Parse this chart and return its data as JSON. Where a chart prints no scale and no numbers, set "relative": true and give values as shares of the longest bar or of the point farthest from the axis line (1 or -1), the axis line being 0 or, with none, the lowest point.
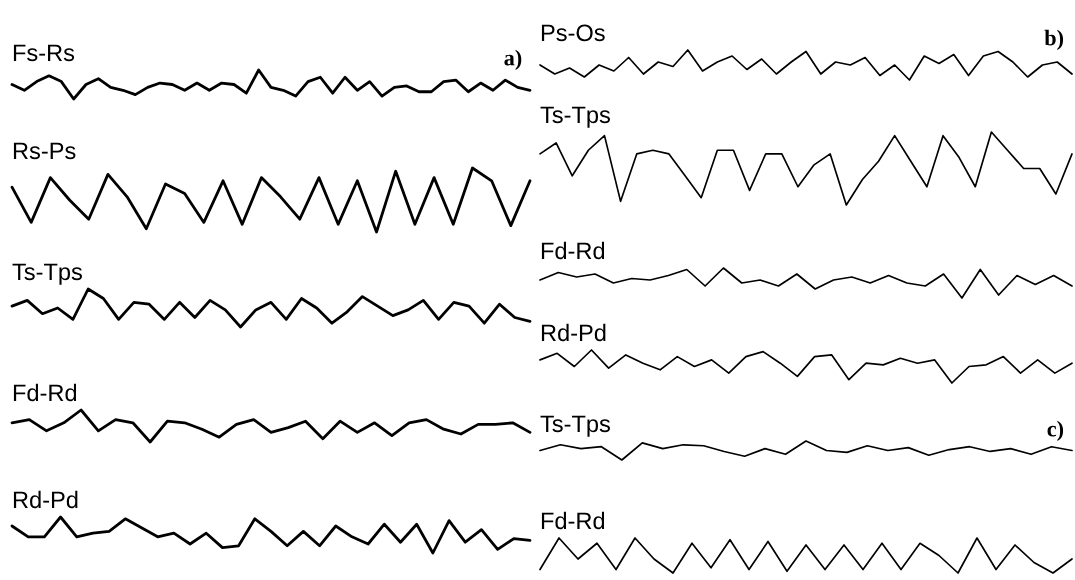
{
  "chart_data": [
    {
      "type": "line",
      "title": "Fs-Rs",
      "annotations": [
        "a)"
      ],
      "relative": true,
      "color": "#000000",
      "categories": [
        null,
        null,
        null,
        null,
        null,
        null,
        null,
        null,
        null,
        null,
        null,
        null,
        null,
        null,
        null,
        null,
        null,
        null,
        null,
        null,
        null,
        null,
        null,
        null,
        null,
        null,
        null,
        null,
        null,
        null,
        null,
        null,
        null,
        null,
        null,
        null,
        null,
        null,
        null,
        null,
        null,
        null,
        null
      ],
      "values": [
        0.5,
        0.3,
        0.6,
        0.8,
        0.6,
        0.0,
        0.5,
        0.7,
        0.4,
        0.3,
        0.15,
        0.4,
        0.55,
        0.5,
        0.3,
        0.55,
        0.3,
        0.55,
        0.5,
        0.2,
        1.0,
        0.4,
        0.3,
        0.1,
        0.6,
        0.75,
        0.2,
        0.75,
        0.3,
        0.6,
        0.1,
        0.4,
        0.45,
        0.25,
        0.25,
        0.6,
        0.65,
        0.25,
        0.55,
        0.3,
        0.65,
        0.4,
        0.3
      ]
    },
    {
      "type": "line",
      "title": "Rs-Ps",
      "relative": true,
      "color": "#000000",
      "categories": [
        null,
        null,
        null,
        null,
        null,
        null,
        null,
        null,
        null,
        null,
        null,
        null,
        null,
        null,
        null,
        null,
        null,
        null,
        null,
        null,
        null,
        null,
        null,
        null,
        null,
        null,
        null,
        null
      ],
      "values": [
        0.7,
        0.15,
        0.85,
        0.5,
        0.2,
        0.9,
        0.55,
        0.05,
        0.75,
        0.6,
        0.15,
        0.8,
        0.12,
        0.85,
        0.55,
        0.2,
        0.85,
        0.12,
        0.8,
        0.0,
        0.95,
        0.12,
        0.85,
        0.12,
        1.0,
        0.8,
        0.1,
        0.8
      ]
    },
    {
      "type": "line",
      "title": "Ts-Tps",
      "relative": true,
      "color": "#000000",
      "categories": [
        null,
        null,
        null,
        null,
        null,
        null,
        null,
        null,
        null,
        null,
        null,
        null,
        null,
        null,
        null,
        null,
        null,
        null,
        null,
        null,
        null,
        null,
        null,
        null,
        null,
        null,
        null,
        null,
        null,
        null,
        null,
        null,
        null,
        null,
        null
      ],
      "values": [
        0.55,
        0.7,
        0.35,
        0.5,
        0.2,
        1.0,
        0.75,
        0.2,
        0.65,
        0.6,
        0.2,
        0.65,
        0.25,
        0.7,
        0.45,
        0.0,
        0.45,
        0.65,
        0.2,
        0.75,
        0.5,
        0.1,
        0.4,
        0.8,
        0.55,
        0.3,
        0.45,
        0.7,
        0.2,
        0.65,
        0.55,
        0.1,
        0.6,
        0.25,
        0.15
      ]
    },
    {
      "type": "line",
      "title": "Fd-Rd",
      "relative": true,
      "color": "#000000",
      "categories": [
        null,
        null,
        null,
        null,
        null,
        null,
        null,
        null,
        null,
        null,
        null,
        null,
        null,
        null,
        null,
        null,
        null,
        null,
        null,
        null,
        null,
        null,
        null,
        null,
        null,
        null,
        null,
        null,
        null,
        null,
        null
      ],
      "values": [
        0.6,
        0.7,
        0.35,
        0.6,
        1.0,
        0.35,
        0.7,
        0.6,
        0.0,
        0.65,
        0.6,
        0.4,
        0.15,
        0.55,
        0.7,
        0.3,
        0.45,
        0.65,
        0.1,
        0.65,
        0.3,
        0.6,
        0.2,
        0.6,
        0.7,
        0.4,
        0.25,
        0.55,
        0.55,
        0.6,
        0.3
      ]
    },
    {
      "type": "line",
      "title": "Rd-Pd",
      "relative": true,
      "color": "#000000",
      "categories": [
        null,
        null,
        null,
        null,
        null,
        null,
        null,
        null,
        null,
        null,
        null,
        null,
        null,
        null,
        null,
        null,
        null,
        null,
        null,
        null,
        null,
        null,
        null,
        null,
        null,
        null,
        null,
        null,
        null,
        null,
        null,
        null,
        null
      ],
      "values": [
        0.75,
        0.45,
        0.45,
        1.0,
        0.45,
        0.55,
        0.6,
        0.95,
        0.7,
        0.45,
        0.55,
        0.25,
        0.55,
        0.15,
        0.2,
        0.95,
        0.6,
        0.2,
        0.6,
        0.2,
        0.75,
        0.45,
        0.25,
        0.8,
        0.3,
        0.8,
        0.0,
        0.9,
        0.3,
        0.65,
        0.1,
        0.4,
        0.35
      ]
    },
    {
      "type": "line",
      "title": "Ps-Os",
      "annotations": [
        "b)"
      ],
      "relative": true,
      "color": "#000000",
      "categories": [
        null,
        null,
        null,
        null,
        null,
        null,
        null,
        null,
        null,
        null,
        null,
        null,
        null,
        null,
        null,
        null,
        null,
        null,
        null,
        null,
        null,
        null,
        null,
        null,
        null,
        null,
        null,
        null,
        null,
        null,
        null,
        null,
        null,
        null,
        null,
        null,
        null
      ],
      "values": [
        0.5,
        0.2,
        0.4,
        0.1,
        0.5,
        0.3,
        0.75,
        0.2,
        0.6,
        0.45,
        1.0,
        0.3,
        0.6,
        0.8,
        0.35,
        0.7,
        0.2,
        0.6,
        0.95,
        0.2,
        0.6,
        0.5,
        0.75,
        0.15,
        0.5,
        0.0,
        0.8,
        0.55,
        0.85,
        0.15,
        0.8,
        0.95,
        0.6,
        0.1,
        0.5,
        0.6,
        0.2
      ]
    },
    {
      "type": "line",
      "title": "Ts-Tps",
      "relative": true,
      "color": "#000000",
      "categories": [
        null,
        null,
        null,
        null,
        null,
        null,
        null,
        null,
        null,
        null,
        null,
        null,
        null,
        null,
        null,
        null,
        null,
        null,
        null,
        null,
        null,
        null,
        null,
        null,
        null,
        null,
        null,
        null,
        null,
        null,
        null,
        null,
        null,
        null
      ],
      "values": [
        0.7,
        0.85,
        0.4,
        0.75,
        0.95,
        0.05,
        0.7,
        0.75,
        0.7,
        0.4,
        0.1,
        0.75,
        0.75,
        0.2,
        0.7,
        0.7,
        0.25,
        0.55,
        0.7,
        0.0,
        0.35,
        0.6,
        0.95,
        0.6,
        0.25,
        0.95,
        0.65,
        0.25,
        1.0,
        0.75,
        0.5,
        0.5,
        0.15,
        0.7
      ]
    },
    {
      "type": "line",
      "title": "Fd-Rd",
      "relative": true,
      "color": "#000000",
      "categories": [
        null,
        null,
        null,
        null,
        null,
        null,
        null,
        null,
        null,
        null,
        null,
        null,
        null,
        null,
        null,
        null,
        null,
        null,
        null,
        null,
        null,
        null,
        null,
        null,
        null,
        null,
        null,
        null,
        null,
        null
      ],
      "values": [
        0.6,
        0.85,
        0.7,
        0.8,
        0.5,
        0.65,
        0.6,
        0.75,
        0.95,
        0.4,
        1.0,
        0.5,
        0.6,
        0.4,
        0.8,
        0.3,
        0.6,
        0.7,
        0.5,
        0.75,
        0.5,
        0.4,
        0.8,
        0.0,
        0.95,
        0.1,
        0.75,
        0.45,
        0.75,
        0.4
      ]
    },
    {
      "type": "line",
      "title": "Rd-Pd",
      "relative": true,
      "color": "#000000",
      "categories": [
        null,
        null,
        null,
        null,
        null,
        null,
        null,
        null,
        null,
        null,
        null,
        null,
        null,
        null,
        null,
        null,
        null,
        null,
        null,
        null,
        null,
        null,
        null,
        null,
        null,
        null,
        null,
        null,
        null,
        null,
        null,
        null
      ],
      "values": [
        0.7,
        0.9,
        0.5,
        1.0,
        0.45,
        0.85,
        0.6,
        0.4,
        0.8,
        0.5,
        0.7,
        0.3,
        0.8,
        0.95,
        0.6,
        0.2,
        0.8,
        0.85,
        0.1,
        0.6,
        0.55,
        0.75,
        0.6,
        0.7,
        0.0,
        0.5,
        0.55,
        0.8,
        0.3,
        0.7,
        0.3,
        0.6
      ]
    },
    {
      "type": "line",
      "title": "Ts-Tps",
      "annotations": [
        "c)"
      ],
      "relative": true,
      "color": "#000000",
      "categories": [
        null,
        null,
        null,
        null,
        null,
        null,
        null,
        null,
        null,
        null,
        null,
        null,
        null,
        null,
        null,
        null,
        null,
        null,
        null,
        null,
        null,
        null,
        null,
        null,
        null,
        null,
        null
      ],
      "values": [
        0.5,
        0.8,
        0.6,
        0.7,
        0.0,
        0.9,
        0.6,
        0.8,
        0.75,
        0.45,
        0.2,
        0.6,
        0.3,
        1.0,
        0.5,
        0.4,
        0.75,
        0.5,
        0.65,
        0.25,
        0.55,
        0.7,
        0.45,
        0.6,
        0.3,
        0.7,
        0.5
      ]
    },
    {
      "type": "line",
      "title": "Fd-Rd",
      "relative": true,
      "color": "#000000",
      "categories": [
        null,
        null,
        null,
        null,
        null,
        null,
        null,
        null,
        null,
        null,
        null,
        null,
        null,
        null,
        null,
        null,
        null,
        null,
        null,
        null,
        null,
        null,
        null,
        null,
        null,
        null,
        null,
        null,
        null
      ],
      "values": [
        0.1,
        1.0,
        0.4,
        0.85,
        0.1,
        1.0,
        0.4,
        0.0,
        0.85,
        0.15,
        0.95,
        0.1,
        0.9,
        0.05,
        0.8,
        0.1,
        0.8,
        0.1,
        0.85,
        0.1,
        0.85,
        0.5,
        0.0,
        1.0,
        0.1,
        0.8,
        0.3,
        0.0,
        0.4
      ]
    }
  ]
}
